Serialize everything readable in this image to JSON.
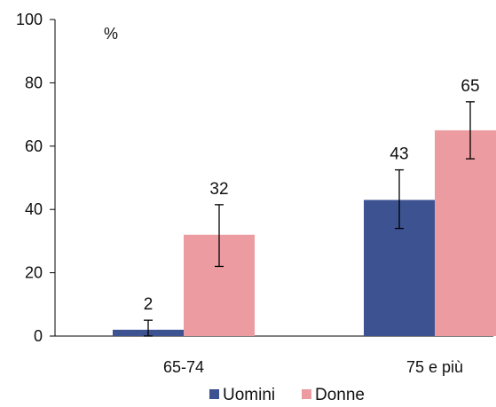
{
  "chart_data": {
    "type": "bar",
    "unit_label": "%",
    "categories": [
      "65-74",
      "75 e più"
    ],
    "series": [
      {
        "name": "Uomini",
        "color": "#3C5291",
        "values": [
          2,
          43
        ],
        "error_low": [
          0,
          34
        ],
        "error_high": [
          5,
          52.5
        ]
      },
      {
        "name": "Donne",
        "color": "#EC9CA0",
        "values": [
          32,
          65
        ],
        "error_low": [
          22,
          56
        ],
        "error_high": [
          41.5,
          74
        ]
      }
    ],
    "ylim": [
      0,
      100
    ],
    "yticks": [
      0,
      20,
      40,
      60,
      80,
      100
    ],
    "legend": "bottom",
    "grid": false
  }
}
